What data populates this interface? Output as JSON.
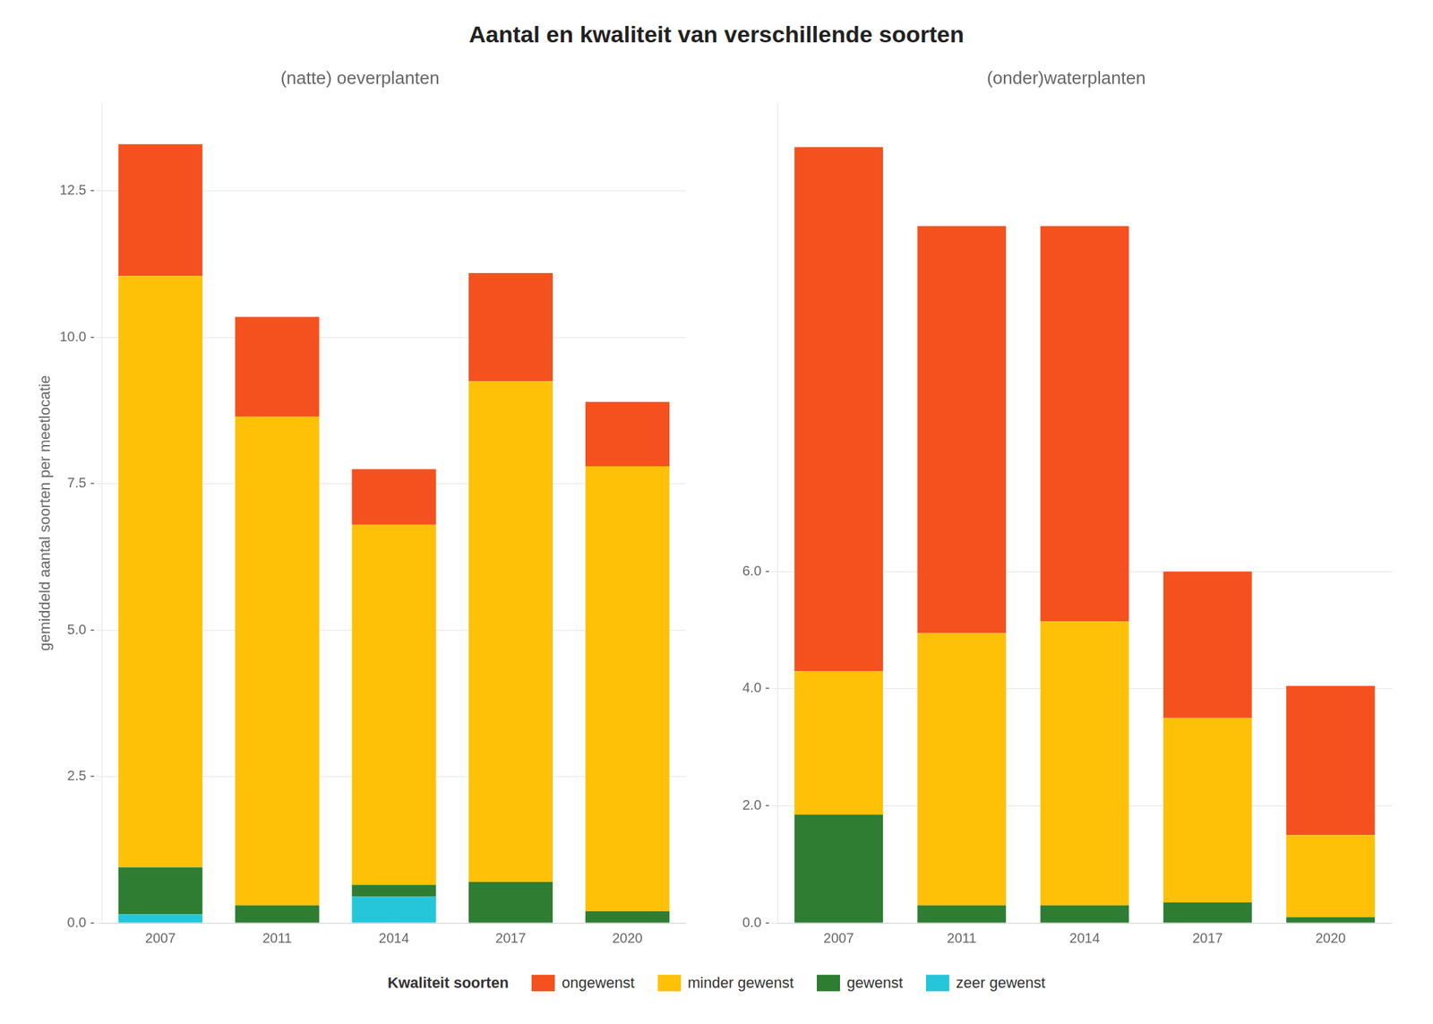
{
  "title": "Aantal en kwaliteit van verschillende soorten",
  "legend_title": "Kwaliteit soorten",
  "legend": "bottom",
  "chart_data": [
    {
      "type": "bar",
      "stacked": true,
      "title": "(natte) oeverplanten",
      "ylabel": "gemiddeld aantal soorten per meetlocatie",
      "categories": [
        "2007",
        "2011",
        "2014",
        "2017",
        "2020"
      ],
      "series": [
        {
          "name": "zeer gewenst",
          "color": "#26C6DA",
          "values": [
            0.15,
            0.0,
            0.45,
            0.0,
            0.0
          ]
        },
        {
          "name": "gewenst",
          "color": "#2E7D32",
          "values": [
            0.8,
            0.3,
            0.2,
            0.7,
            0.2
          ]
        },
        {
          "name": "minder gewenst",
          "color": "#FFC107",
          "values": [
            10.1,
            8.35,
            6.15,
            8.55,
            7.6
          ]
        },
        {
          "name": "ongewenst",
          "color": "#F4511E",
          "values": [
            2.25,
            1.7,
            0.95,
            1.85,
            1.1
          ]
        }
      ],
      "ylim": [
        0,
        14
      ],
      "yticks": [
        {
          "value": 0.0,
          "label": "0.0 -"
        },
        {
          "value": 2.5,
          "label": "2.5 -"
        },
        {
          "value": 5.0,
          "label": "5.0 -"
        },
        {
          "value": 7.5,
          "label": "7.5 -"
        },
        {
          "value": 10.0,
          "label": "10.0 -"
        },
        {
          "value": 12.5,
          "label": "12.5 -"
        }
      ],
      "grid": true
    },
    {
      "type": "bar",
      "stacked": true,
      "title": "(onder)waterplanten",
      "categories": [
        "2007",
        "2011",
        "2014",
        "2017",
        "2020"
      ],
      "series": [
        {
          "name": "zeer gewenst",
          "color": "#26C6DA",
          "values": [
            0.0,
            0.0,
            0.0,
            0.0,
            0.0
          ]
        },
        {
          "name": "gewenst",
          "color": "#2E7D32",
          "values": [
            1.85,
            0.3,
            0.3,
            0.35,
            0.1
          ]
        },
        {
          "name": "minder gewenst",
          "color": "#FFC107",
          "values": [
            2.45,
            4.65,
            4.85,
            3.15,
            1.4
          ]
        },
        {
          "name": "ongewenst",
          "color": "#F4511E",
          "values": [
            8.95,
            6.95,
            6.75,
            2.5,
            2.55
          ]
        }
      ],
      "ylim": [
        0,
        14
      ],
      "yticks": [
        {
          "value": 0,
          "label": "0.0 -"
        },
        {
          "value": 2,
          "label": "2.0 -"
        },
        {
          "value": 4,
          "label": "4.0 -"
        },
        {
          "value": 6,
          "label": "6.0 -"
        }
      ],
      "grid": true
    }
  ]
}
